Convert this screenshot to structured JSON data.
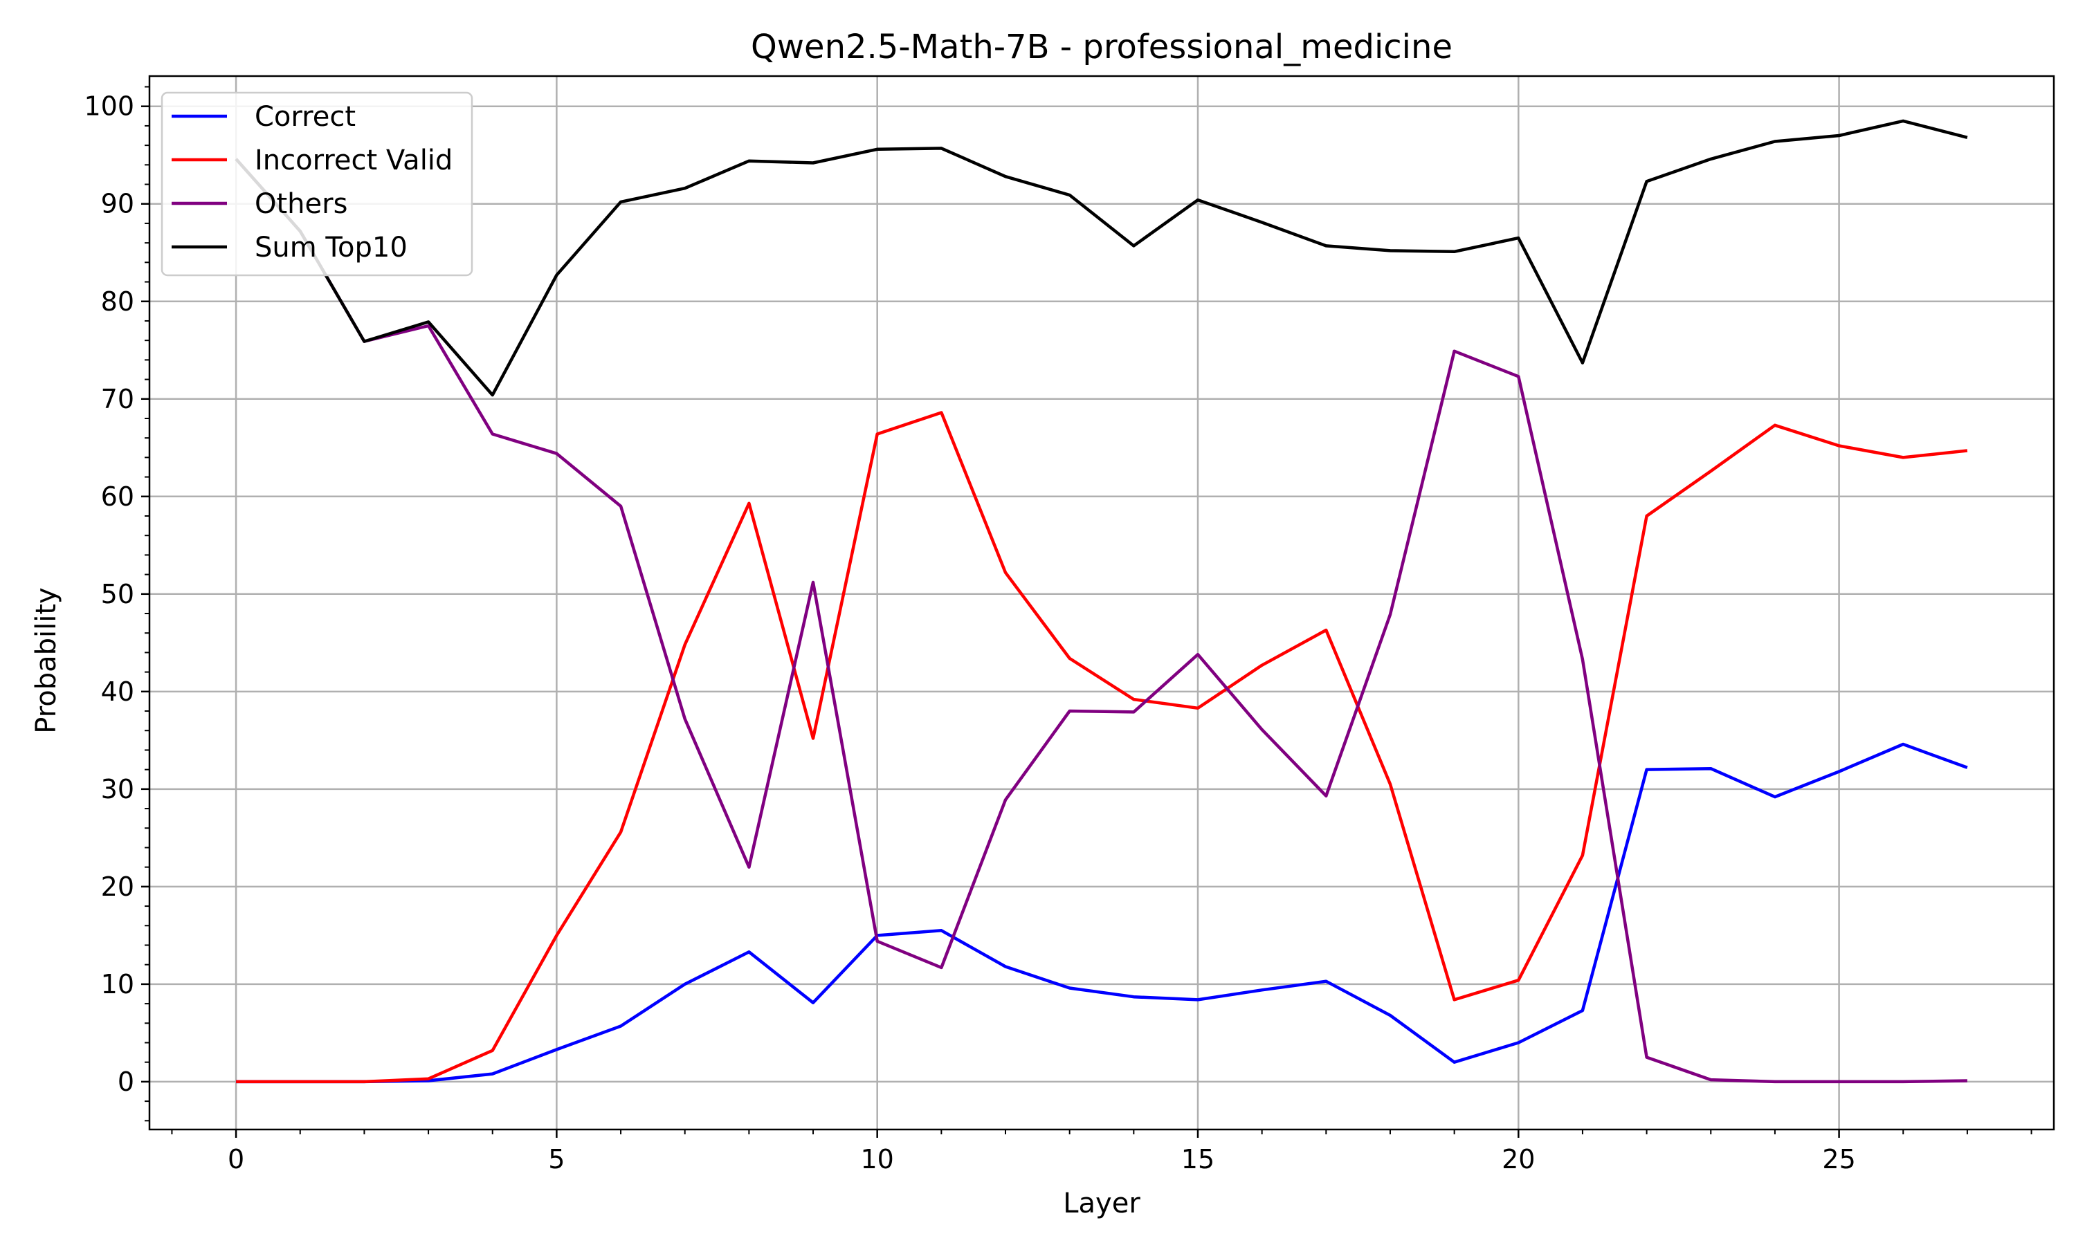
{
  "chart_data": {
    "type": "line",
    "title": "Qwen2.5-Math-7B - professional_medicine",
    "xlabel": "Layer",
    "ylabel": "Probability",
    "xlim": [
      -1.35,
      28.35
    ],
    "ylim": [
      -4.9,
      103.1
    ],
    "x_ticks": [
      0,
      5,
      10,
      15,
      20,
      25
    ],
    "y_ticks": [
      0,
      10,
      20,
      30,
      40,
      50,
      60,
      70,
      80,
      90,
      100
    ],
    "grid": true,
    "legend_position": "top-left",
    "x": [
      0,
      1,
      2,
      3,
      4,
      5,
      6,
      7,
      8,
      9,
      10,
      11,
      12,
      13,
      14,
      15,
      16,
      17,
      18,
      19,
      20,
      21,
      22,
      23,
      24,
      25,
      26,
      27
    ],
    "series": [
      {
        "name": "Correct",
        "color": "#0000ff",
        "values": [
          0.0,
          0.0,
          0.0,
          0.1,
          0.8,
          3.3,
          5.7,
          10.0,
          13.3,
          8.1,
          15.0,
          15.5,
          11.8,
          9.6,
          8.7,
          8.4,
          9.4,
          10.3,
          6.8,
          2.0,
          4.0,
          7.3,
          32.0,
          32.1,
          29.2,
          31.8,
          34.6,
          32.2
        ]
      },
      {
        "name": "Incorrect Valid",
        "color": "#ff0000",
        "values": [
          0.0,
          0.0,
          0.0,
          0.3,
          3.2,
          15.0,
          25.6,
          44.8,
          59.3,
          35.2,
          66.4,
          68.6,
          52.2,
          43.4,
          39.2,
          38.3,
          42.7,
          46.3,
          30.5,
          8.4,
          10.4,
          23.2,
          58.0,
          62.6,
          67.3,
          65.2,
          64.0,
          64.7
        ]
      },
      {
        "name": "Others",
        "color": "#800080",
        "values": [
          94.6,
          87.2,
          75.9,
          77.5,
          66.4,
          64.4,
          59.0,
          37.2,
          22.0,
          51.2,
          14.4,
          11.7,
          28.9,
          38.0,
          37.9,
          43.8,
          36.1,
          29.3,
          47.9,
          74.9,
          72.3,
          43.3,
          2.5,
          0.2,
          0.0,
          0.0,
          0.0,
          0.1
        ]
      },
      {
        "name": "Sum Top10",
        "color": "#000000",
        "values": [
          94.6,
          87.2,
          75.9,
          77.9,
          70.4,
          82.7,
          90.2,
          91.6,
          94.4,
          94.2,
          95.6,
          95.7,
          92.8,
          90.9,
          85.7,
          90.4,
          88.1,
          85.7,
          85.2,
          85.1,
          86.5,
          73.7,
          92.3,
          94.6,
          96.4,
          97.0,
          98.5,
          96.8
        ]
      }
    ]
  }
}
